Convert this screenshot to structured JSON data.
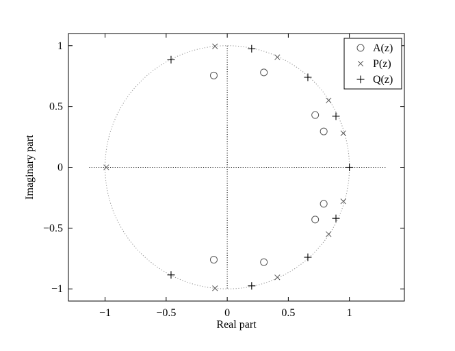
{
  "chart_data": {
    "type": "scatter",
    "title": "",
    "xlabel": "Real part",
    "ylabel": "Imaginary part",
    "xlim": [
      -1.3,
      1.45
    ],
    "ylim": [
      -1.1,
      1.1
    ],
    "x_ticks": [
      {
        "value": -1,
        "label": "−1"
      },
      {
        "value": -0.5,
        "label": "−0.5"
      },
      {
        "value": 0,
        "label": "0"
      },
      {
        "value": 0.5,
        "label": "0.5"
      },
      {
        "value": 1,
        "label": "1"
      }
    ],
    "y_ticks": [
      {
        "value": -1,
        "label": "−1"
      },
      {
        "value": -0.5,
        "label": "−0.5"
      },
      {
        "value": 0,
        "label": "0"
      },
      {
        "value": 0.5,
        "label": "0.5"
      },
      {
        "value": 1,
        "label": "1"
      }
    ],
    "grid": false,
    "legend_position": "top-right",
    "reference_lines": {
      "unit_circle": {
        "radius": 1,
        "style": "dotted",
        "color": "#999999"
      },
      "real_axis": {
        "from": -1.13,
        "to": 1.3,
        "style": "dotted",
        "color": "#000000"
      },
      "imaginary_axis": {
        "from": -1.0,
        "to": 1.0,
        "style": "dotted",
        "color": "#000000"
      }
    },
    "series": [
      {
        "name": "A(z)",
        "marker": "circle",
        "color": "#555555",
        "points": [
          {
            "x": -0.11,
            "y": 0.755
          },
          {
            "x": 0.3,
            "y": 0.78
          },
          {
            "x": 0.72,
            "y": 0.43
          },
          {
            "x": 0.79,
            "y": 0.295
          },
          {
            "x": 0.79,
            "y": -0.3
          },
          {
            "x": 0.72,
            "y": -0.43
          },
          {
            "x": 0.3,
            "y": -0.78
          },
          {
            "x": -0.11,
            "y": -0.76
          }
        ]
      },
      {
        "name": "P(z)",
        "marker": "x",
        "color": "#555555",
        "points": [
          {
            "x": -0.1,
            "y": 0.995
          },
          {
            "x": 0.41,
            "y": 0.905
          },
          {
            "x": 0.83,
            "y": 0.55
          },
          {
            "x": 0.95,
            "y": 0.28
          },
          {
            "x": -0.99,
            "y": 0.0
          },
          {
            "x": 0.95,
            "y": -0.28
          },
          {
            "x": 0.83,
            "y": -0.55
          },
          {
            "x": 0.41,
            "y": -0.905
          },
          {
            "x": -0.1,
            "y": -0.995
          }
        ]
      },
      {
        "name": "Q(z)",
        "marker": "plus",
        "color": "#000000",
        "points": [
          {
            "x": -0.46,
            "y": 0.885
          },
          {
            "x": 0.2,
            "y": 0.975
          },
          {
            "x": 0.66,
            "y": 0.74
          },
          {
            "x": 0.89,
            "y": 0.42
          },
          {
            "x": 1.0,
            "y": 0.0
          },
          {
            "x": 0.89,
            "y": -0.42
          },
          {
            "x": 0.66,
            "y": -0.74
          },
          {
            "x": 0.2,
            "y": -0.975
          },
          {
            "x": -0.46,
            "y": -0.885
          }
        ]
      }
    ]
  }
}
